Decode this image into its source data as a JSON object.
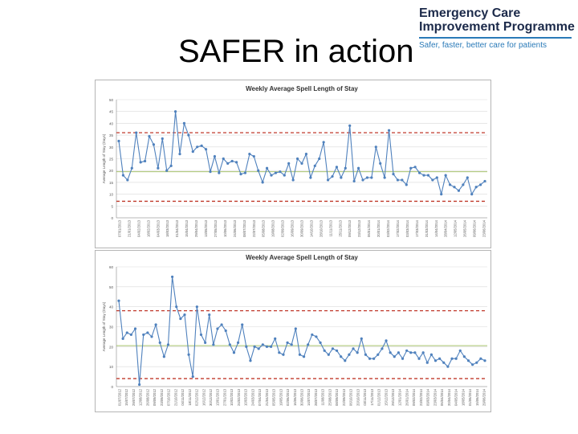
{
  "slide": {
    "title": "SAFER in action",
    "logo": {
      "line1": "Emergency Care",
      "line2": "Improvement Programme",
      "tagline": "Safer, faster, better care for patients"
    }
  },
  "chart_data": [
    {
      "type": "line",
      "title": "Weekly Average Spell Length of Stay",
      "ylabel": "Average Length of Stay (Days)",
      "ylim": [
        0,
        50
      ],
      "yticks": [
        0,
        5,
        10,
        15,
        20,
        25,
        30,
        35,
        40,
        45,
        50
      ],
      "grid": true,
      "x_tick_labels": [
        "07/01/2013",
        "21/01/2013",
        "04/02/2013",
        "18/02/2013",
        "04/03/2013",
        "18/03/2013",
        "01/04/2013",
        "15/04/2013",
        "29/04/2013",
        "13/05/2013",
        "27/05/2013",
        "10/06/2013",
        "24/06/2013",
        "08/07/2013",
        "22/07/2013",
        "05/08/2013",
        "19/08/2013",
        "02/09/2013",
        "16/09/2013",
        "30/09/2013",
        "14/10/2013",
        "28/10/2013",
        "11/11/2013",
        "25/11/2013",
        "09/12/2013",
        "23/12/2013",
        "06/01/2014",
        "20/01/2014",
        "03/02/2014",
        "17/02/2014",
        "03/03/2014",
        "17/03/2014",
        "31/03/2014",
        "14/04/2014",
        "28/04/2014",
        "12/05/2014",
        "26/05/2014",
        "09/06/2014",
        "23/06/2014"
      ],
      "series": [
        {
          "role": "data",
          "color": "#4f81bd",
          "values": [
            32.5,
            18,
            16,
            21,
            36,
            23.5,
            24,
            34.5,
            31,
            21,
            33.5,
            20,
            22,
            45,
            27,
            40,
            35,
            28,
            30,
            30.5,
            29,
            19.5,
            26,
            19,
            25,
            23,
            24,
            23.5,
            18.5,
            19,
            27,
            26,
            20,
            15,
            21,
            18,
            19,
            19.5,
            18,
            23,
            16,
            25,
            23,
            27,
            17,
            22,
            25,
            32,
            16,
            17.5,
            21.5,
            17,
            21,
            39,
            15.5,
            21,
            16,
            17,
            17,
            30,
            23,
            17,
            37,
            18.5,
            16,
            16,
            14,
            21,
            21.5,
            19,
            18,
            18,
            16,
            17,
            10,
            18,
            14,
            13,
            11.5,
            14,
            17,
            10,
            13,
            14,
            15.5
          ]
        },
        {
          "role": "upper_control_limit",
          "color": "#c0392b",
          "style": "dashed",
          "value": 36
        },
        {
          "role": "mean",
          "color": "#9bbb59",
          "value": 19.5
        },
        {
          "role": "lower_control_limit",
          "color": "#c0392b",
          "style": "dashed",
          "value": 7
        }
      ]
    },
    {
      "type": "line",
      "title": "Weekly Average Spell Length of Stay",
      "ylabel": "Average Length of Stay (Days)",
      "ylim": [
        0,
        60
      ],
      "yticks": [
        0,
        10,
        20,
        30,
        40,
        50,
        60
      ],
      "grid": true,
      "x_tick_labels": [
        "01/07/2012",
        "15/07/2012",
        "29/07/2012",
        "12/08/2012",
        "26/08/2012",
        "09/09/2012",
        "23/09/2012",
        "07/10/2012",
        "21/10/2012",
        "04/11/2012",
        "18/11/2012",
        "02/12/2012",
        "16/12/2012",
        "30/12/2012",
        "13/01/2013",
        "27/01/2013",
        "10/02/2013",
        "24/02/2013",
        "10/03/2013",
        "24/03/2013",
        "07/04/2013",
        "21/04/2013",
        "05/05/2013",
        "19/05/2013",
        "02/06/2013",
        "16/06/2013",
        "30/06/2013",
        "14/07/2013",
        "28/07/2013",
        "11/08/2013",
        "25/08/2013",
        "08/09/2013",
        "22/09/2013",
        "06/10/2013",
        "20/10/2013",
        "03/11/2013",
        "17/11/2013",
        "01/12/2013",
        "15/12/2013",
        "29/12/2013",
        "12/01/2014",
        "26/01/2014",
        "09/02/2014",
        "23/02/2014",
        "09/03/2014",
        "23/03/2014",
        "06/04/2014",
        "20/04/2014",
        "04/05/2014",
        "18/05/2014",
        "01/06/2014",
        "15/06/2014",
        "29/06/2014"
      ],
      "series": [
        {
          "role": "data",
          "color": "#4f81bd",
          "values": [
            43,
            24,
            27,
            26,
            29,
            1,
            26,
            27,
            25,
            31,
            22,
            15,
            21,
            55,
            40,
            34,
            36,
            16,
            5,
            40,
            26,
            22,
            36,
            21,
            29,
            31,
            28,
            21,
            17,
            22,
            31,
            20,
            13,
            20,
            19,
            21,
            20,
            20,
            24,
            17,
            16,
            22,
            21,
            29,
            16,
            15,
            21,
            26,
            25,
            22,
            18,
            16,
            19,
            18,
            15,
            13,
            16,
            19,
            17,
            24,
            16,
            14,
            14,
            16,
            19,
            23,
            17,
            15,
            17,
            14,
            18,
            17,
            17,
            14,
            17,
            12,
            16,
            13,
            14,
            12,
            10,
            14,
            14,
            18,
            15,
            13,
            11,
            12,
            14,
            13
          ]
        },
        {
          "role": "upper_control_limit",
          "color": "#c0392b",
          "style": "dashed",
          "value": 38
        },
        {
          "role": "mean",
          "color": "#9bbb59",
          "value": 20.5
        },
        {
          "role": "lower_control_limit",
          "color": "#c0392b",
          "style": "dashed",
          "value": 4
        }
      ]
    }
  ]
}
